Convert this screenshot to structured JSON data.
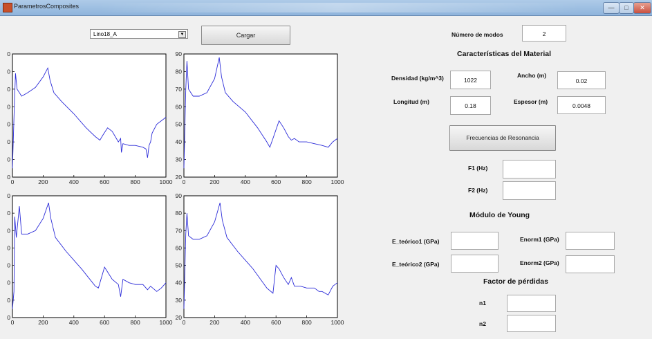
{
  "window": {
    "title": "ParametrosComposites",
    "minimize_label": "—",
    "maximize_label": "□",
    "close_label": "✕"
  },
  "controls": {
    "file_select_value": "Lino18_A",
    "load_button_label": "Cargar",
    "modes_label": "Número de modos",
    "modes_value": "2"
  },
  "material": {
    "header": "Características del Material",
    "density_label": "Densidad (kg/m^3)",
    "density_value": "1022",
    "width_label": "Ancho (m)",
    "width_value": "0.02",
    "length_label": "Longitud (m)",
    "length_value": "0.18",
    "thickness_label": "Espesor (m)",
    "thickness_value": "0.0048"
  },
  "resonance": {
    "button_label": "Frecuencias de Resonancia",
    "f1_label": "F1 (Hz)",
    "f1_value": "",
    "f2_label": "F2 (Hz)",
    "f2_value": ""
  },
  "young": {
    "header": "Módulo de Young",
    "e_teo1_label": "E_teórico1 (GPa)",
    "e_teo1_value": "",
    "enorm1_label": "Enorm1 (GPa)",
    "enorm1_value": "",
    "e_teo2_label": "E_teórico2 (GPa)",
    "e_teo2_value": "",
    "enorm2_label": "Enorm2 (GPa)",
    "enorm2_value": ""
  },
  "losses": {
    "header": "Factor de pérdidas",
    "n1_label": "n1",
    "n1_value": "",
    "n2_label": "n2",
    "n2_value": ""
  },
  "chart_data": [
    {
      "type": "line",
      "xlim": [
        0,
        1000
      ],
      "ylim": [
        20,
        90
      ],
      "x_ticks": [
        "0",
        "200",
        "400",
        "600",
        "800",
        "1000"
      ],
      "y_ticks": [
        "0",
        "0",
        "0",
        "0",
        "0",
        "0",
        "0",
        "0"
      ],
      "line_color": "#2a2ad8",
      "series": [
        {
          "x": [
            0,
            12,
            20,
            30,
            60,
            100,
            150,
            200,
            230,
            245,
            270,
            320,
            400,
            480,
            540,
            570,
            590,
            620,
            650,
            690,
            705,
            710,
            720,
            760,
            800,
            850,
            870,
            880,
            890,
            900,
            910,
            940,
            970,
            1000
          ],
          "y": [
            25,
            60,
            79,
            70,
            66,
            68,
            71,
            77,
            82,
            75,
            68,
            63,
            56,
            48,
            43,
            41,
            44,
            48,
            46,
            40,
            42,
            34,
            39,
            38,
            38,
            37,
            36,
            31,
            38,
            40,
            45,
            50,
            52,
            54
          ]
        }
      ]
    },
    {
      "type": "line",
      "xlim": [
        0,
        1000
      ],
      "ylim": [
        20,
        90
      ],
      "x_ticks": [
        "0",
        "200",
        "400",
        "600",
        "800",
        "1000"
      ],
      "y_ticks": [
        "20",
        "30",
        "40",
        "50",
        "60",
        "70",
        "80",
        "90"
      ],
      "line_color": "#2a2ad8",
      "series": [
        {
          "x": [
            0,
            12,
            20,
            30,
            60,
            100,
            150,
            200,
            230,
            245,
            270,
            320,
            400,
            480,
            540,
            560,
            580,
            620,
            650,
            680,
            700,
            720,
            750,
            800,
            850,
            900,
            940,
            970,
            1000
          ],
          "y": [
            25,
            70,
            86,
            70,
            66,
            66,
            68,
            76,
            88,
            77,
            68,
            63,
            57,
            48,
            40,
            37,
            42,
            52,
            48,
            43,
            41,
            42,
            40,
            40,
            39,
            38,
            37,
            40,
            42
          ]
        }
      ]
    },
    {
      "type": "line",
      "xlim": [
        0,
        1000
      ],
      "ylim": [
        20,
        90
      ],
      "x_ticks": [
        "0",
        "200",
        "400",
        "600",
        "800",
        "1000"
      ],
      "y_ticks": [
        "0",
        "0",
        "0",
        "0",
        "0",
        "0",
        "0",
        "0"
      ],
      "line_color": "#2a2ad8",
      "series": [
        {
          "x": [
            0,
            10,
            15,
            25,
            45,
            60,
            100,
            150,
            200,
            235,
            250,
            280,
            350,
            450,
            540,
            560,
            600,
            650,
            690,
            705,
            720,
            760,
            800,
            850,
            880,
            900,
            940,
            970,
            1000
          ],
          "y": [
            25,
            35,
            78,
            66,
            84,
            68,
            68,
            70,
            77,
            86,
            77,
            66,
            58,
            48,
            38,
            37,
            49,
            42,
            39,
            32,
            42,
            40,
            39,
            39,
            36,
            38,
            35,
            37,
            40
          ]
        }
      ]
    },
    {
      "type": "line",
      "xlim": [
        0,
        1000
      ],
      "ylim": [
        20,
        90
      ],
      "x_ticks": [
        "0",
        "200",
        "400",
        "600",
        "800",
        "1000"
      ],
      "y_ticks": [
        "20",
        "30",
        "40",
        "50",
        "60",
        "70",
        "80",
        "90"
      ],
      "line_color": "#2a2ad8",
      "series": [
        {
          "x": [
            0,
            12,
            20,
            30,
            60,
            100,
            150,
            200,
            235,
            250,
            280,
            350,
            450,
            540,
            580,
            600,
            620,
            650,
            680,
            700,
            720,
            760,
            800,
            850,
            880,
            900,
            940,
            970,
            1000
          ],
          "y": [
            25,
            68,
            80,
            67,
            65,
            65,
            67,
            75,
            86,
            76,
            66,
            58,
            48,
            37,
            34,
            50,
            48,
            43,
            39,
            43,
            38,
            38,
            37,
            37,
            35,
            35,
            33,
            38,
            40
          ]
        }
      ]
    }
  ]
}
